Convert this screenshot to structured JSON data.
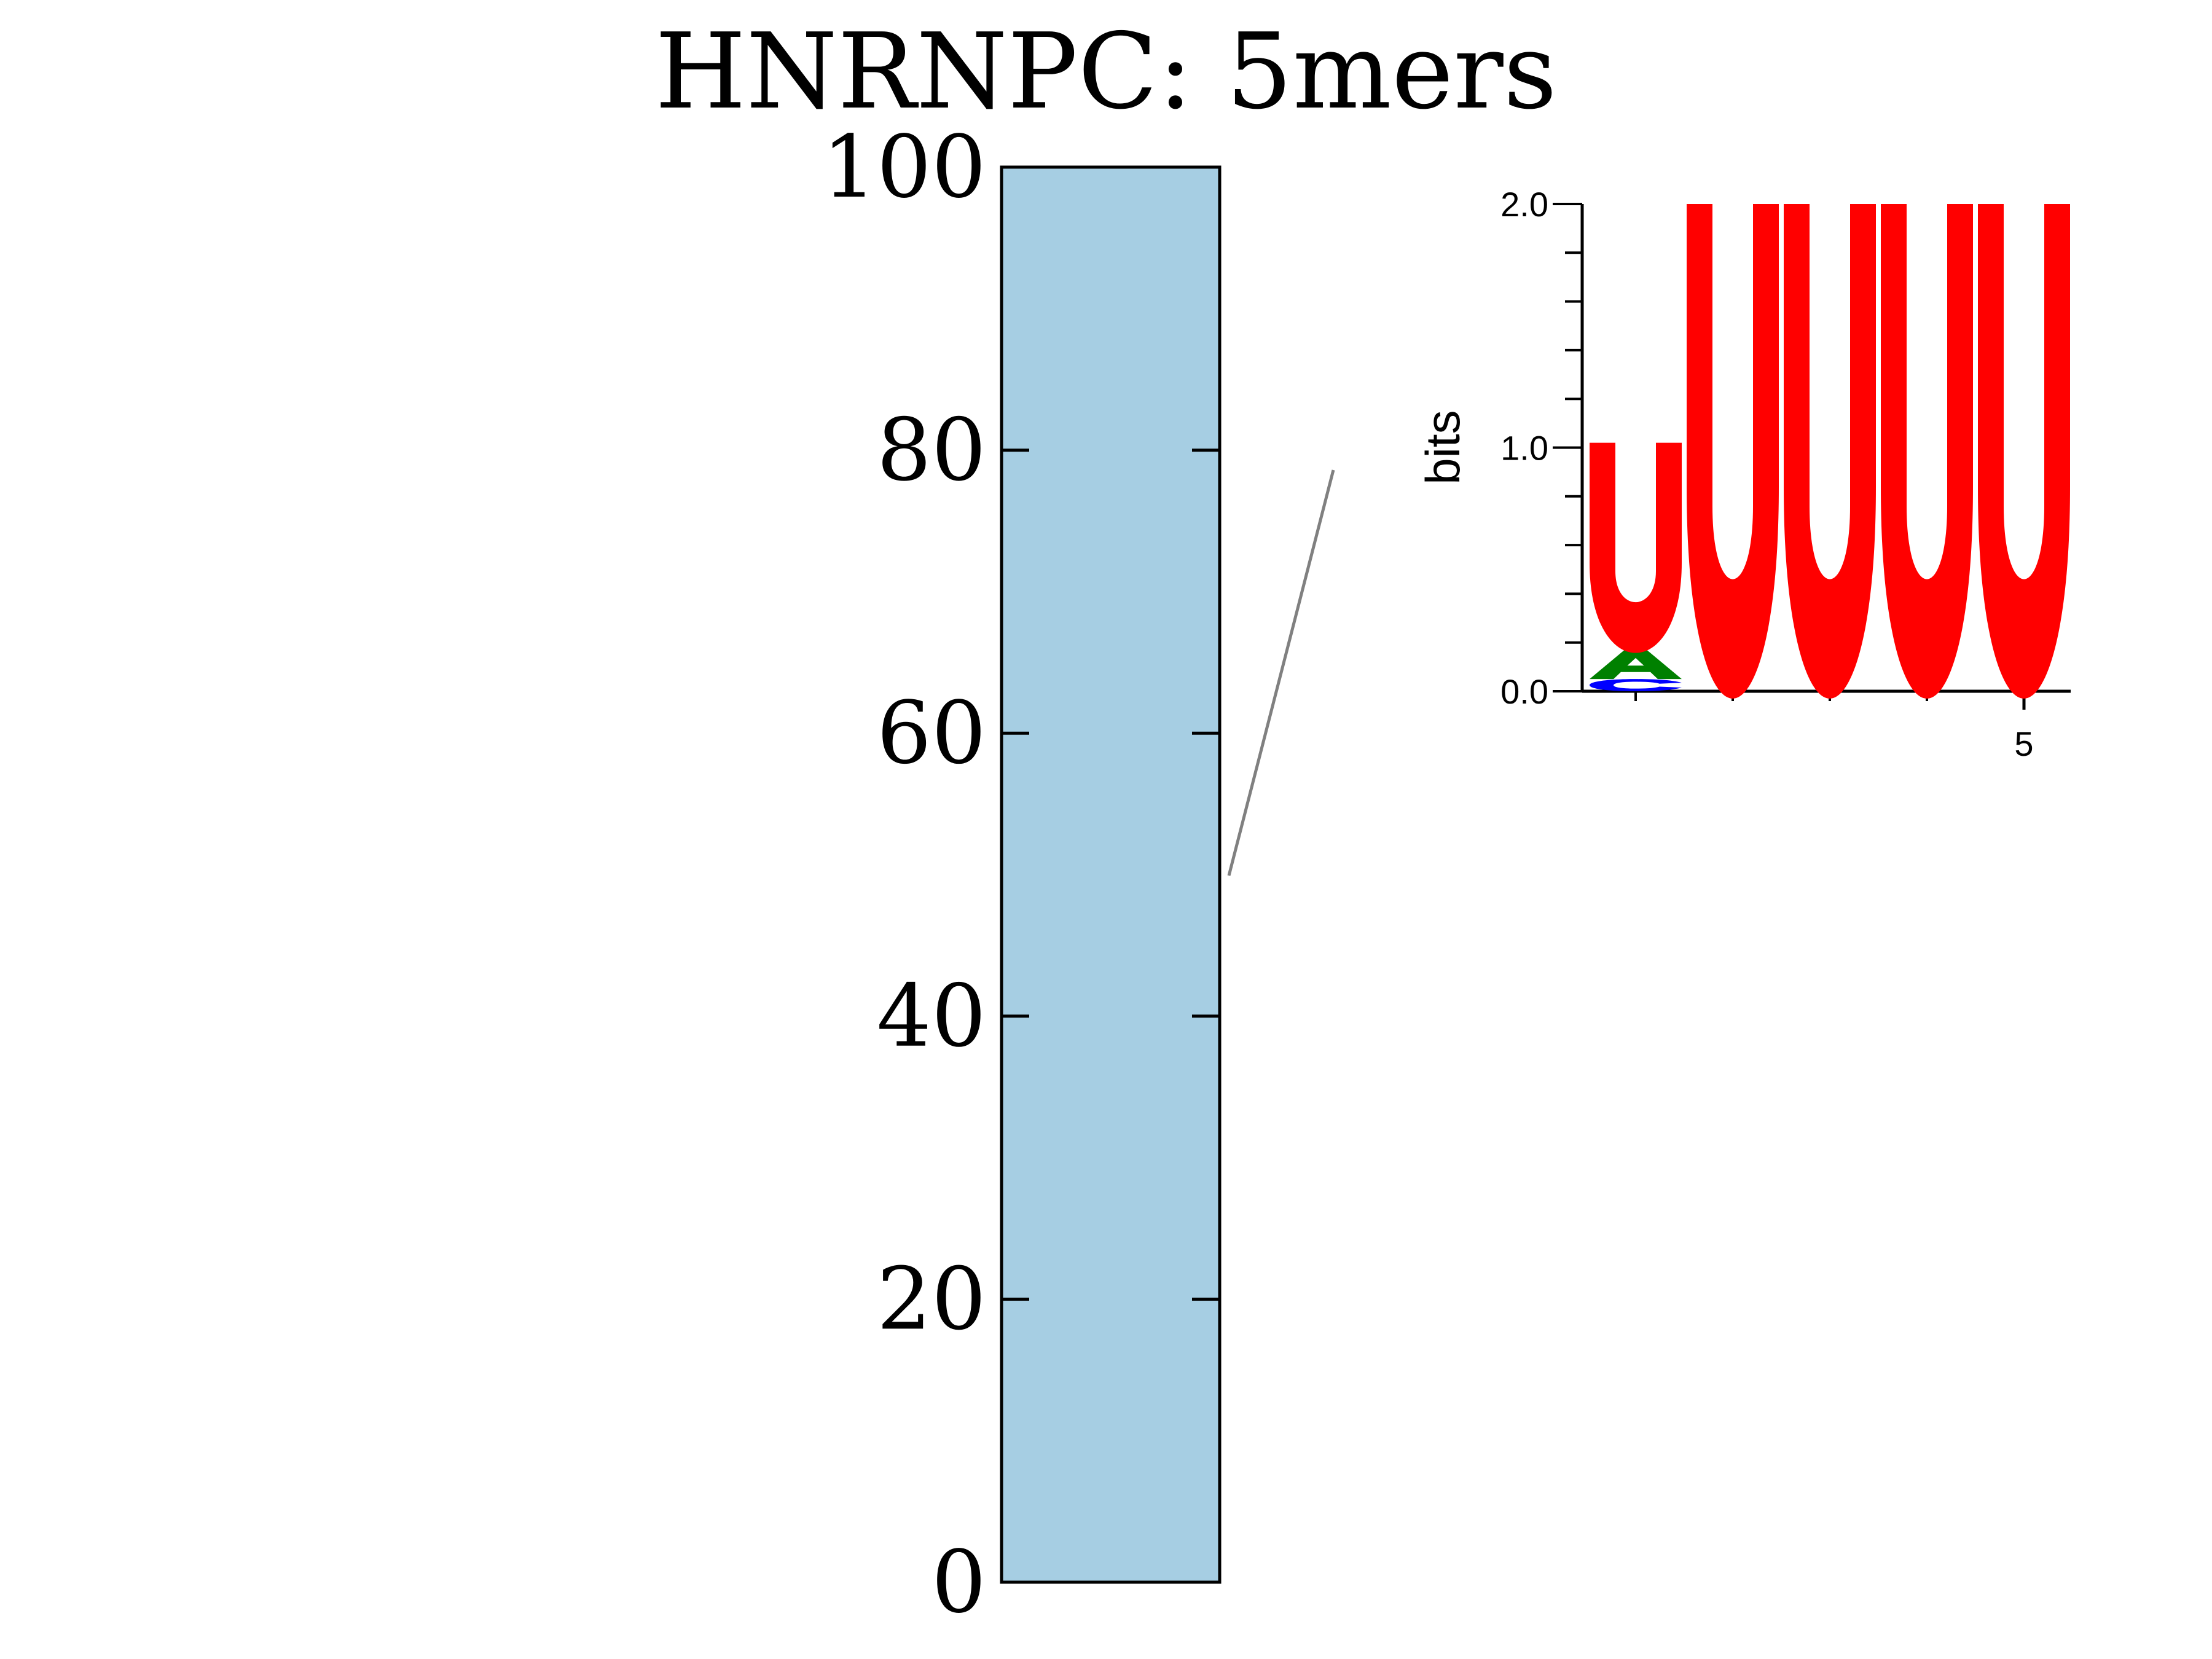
{
  "chart_data": [
    {
      "type": "bar",
      "title": "HNRNPC: 5mers",
      "categories": [
        ""
      ],
      "values": [
        100
      ],
      "ylim": [
        0,
        100
      ],
      "yticks": [
        "0",
        "20",
        "40",
        "60",
        "80",
        "100"
      ],
      "xlabel": "",
      "ylabel": "",
      "grid": false,
      "colors": {
        "bar": "#a6cee3",
        "edge": "#000000",
        "connector": "#808080"
      }
    },
    {
      "type": "sequence-logo",
      "ylabel": "bits",
      "ylim": [
        0,
        2.0
      ],
      "yticks": [
        "0.0",
        "1.0",
        "2.0"
      ],
      "xticks": [
        "5"
      ],
      "positions": [
        {
          "position": 1,
          "letters": [
            {
              "letter": "C",
              "bits": 0.05
            },
            {
              "letter": "A",
              "bits": 0.12
            },
            {
              "letter": "U",
              "bits": 0.85
            }
          ]
        },
        {
          "position": 2,
          "letters": [
            {
              "letter": "U",
              "bits": 2.0
            }
          ]
        },
        {
          "position": 3,
          "letters": [
            {
              "letter": "U",
              "bits": 2.0
            }
          ]
        },
        {
          "position": 4,
          "letters": [
            {
              "letter": "U",
              "bits": 2.0
            }
          ]
        },
        {
          "position": 5,
          "letters": [
            {
              "letter": "U",
              "bits": 2.0
            }
          ]
        }
      ],
      "colors": {
        "U": "#ff0000",
        "A": "#008000",
        "C": "#0000ff"
      }
    }
  ]
}
